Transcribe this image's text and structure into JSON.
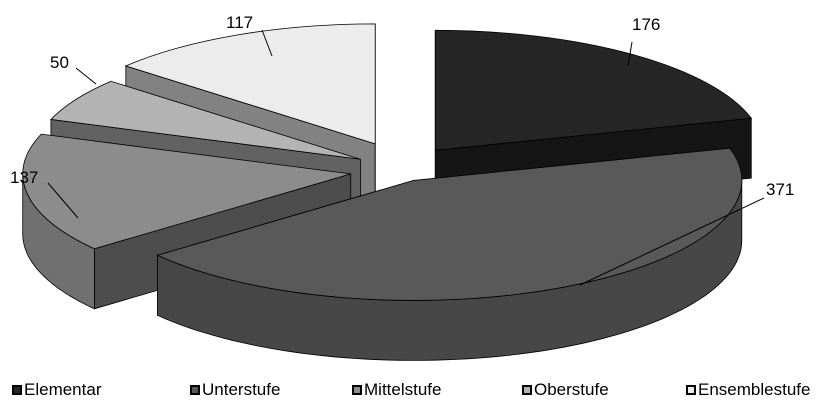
{
  "chart_data": {
    "type": "pie",
    "style": "3d-exploded",
    "categories": [
      "Elementar",
      "Unterstufe",
      "Mittelstufe",
      "Oberstufe",
      "Ensemblestufe"
    ],
    "values": [
      176,
      371,
      137,
      50,
      117
    ],
    "data_labels": [
      "176",
      "371",
      "137",
      "50",
      "117"
    ],
    "colors": [
      "#262626",
      "#595959",
      "#8c8c8c",
      "#b3b3b3",
      "#ececec"
    ],
    "legend_position": "bottom"
  }
}
